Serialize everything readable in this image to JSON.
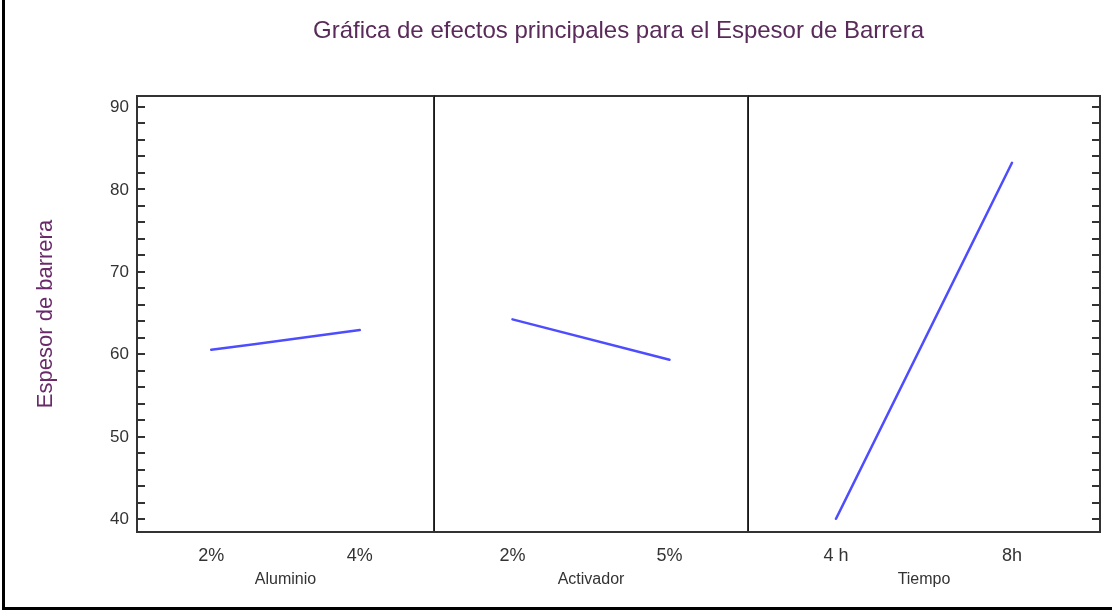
{
  "chart_data": [
    {
      "type": "line",
      "title": "Gráfica de efectos principales para el Espesor de Barrera",
      "ylabel": "Espesor de barrera",
      "xlabel": "Aluminio",
      "categories": [
        "2%",
        "4%"
      ],
      "values": [
        60.5,
        62.9
      ],
      "color": "#4d4dff",
      "ylim": [
        38.4,
        91.3
      ],
      "yticks": [
        40,
        {
          "value": 42,
          "label": null
        },
        {
          "value": 44,
          "label": null
        },
        {
          "value": 46,
          "label": null
        },
        {
          "value": 48,
          "label": null
        },
        50,
        {
          "value": 52,
          "label": null
        },
        {
          "value": 54,
          "label": null
        },
        {
          "value": 56,
          "label": null
        },
        {
          "value": 58,
          "label": null
        },
        60,
        {
          "value": 62,
          "label": null
        },
        {
          "value": 64,
          "label": null
        },
        {
          "value": 66,
          "label": null
        },
        {
          "value": 68,
          "label": null
        },
        70,
        {
          "value": 72,
          "label": null
        },
        {
          "value": 74,
          "label": null
        },
        {
          "value": 76,
          "label": null
        },
        {
          "value": 78,
          "label": null
        },
        80,
        {
          "value": 82,
          "label": null
        },
        {
          "value": 84,
          "label": null
        },
        {
          "value": 86,
          "label": null
        },
        {
          "value": 88,
          "label": null
        },
        90
      ],
      "marker": "none",
      "grid": false
    },
    {
      "type": "line",
      "xlabel": "Activador",
      "categories": [
        "2%",
        "5%"
      ],
      "values": [
        64.2,
        59.3
      ],
      "color": "#4d4dff",
      "ylim": [
        38.4,
        91.3
      ],
      "marker": "none",
      "grid": false,
      "tick_labels": "x"
    },
    {
      "type": "line",
      "xlabel": "Tiempo",
      "categories": [
        "4 h",
        "8h"
      ],
      "values": [
        40,
        83.2
      ],
      "color": "#4d4dff",
      "ylim": [
        38.4,
        91.3
      ],
      "marker": "none",
      "grid": false,
      "tick_labels": "x"
    }
  ]
}
